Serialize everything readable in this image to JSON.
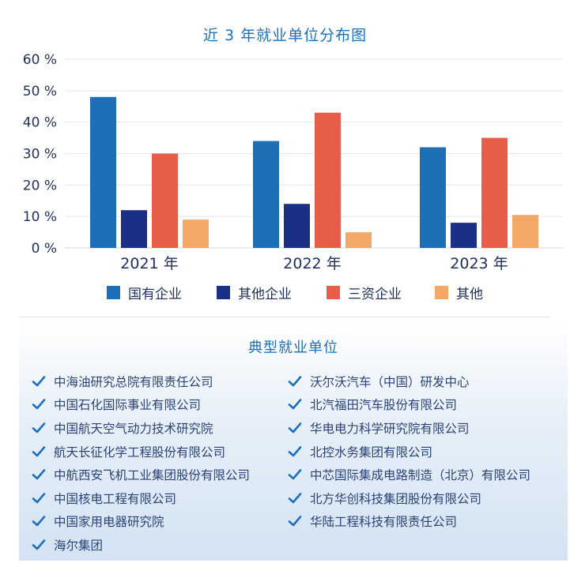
{
  "chart_data": {
    "type": "bar",
    "title": "近 3 年就业单位分布图",
    "categories": [
      "2021 年",
      "2022 年",
      "2023 年"
    ],
    "yticks": [
      "0 %",
      "10 %",
      "20 %",
      "30 %",
      "40 %",
      "50 %",
      "60 %"
    ],
    "ylim": [
      0,
      60
    ],
    "grid": true,
    "legend_position": "bottom",
    "series": [
      {
        "name": "国有企业",
        "color": "#1f6fb6",
        "values": [
          48,
          34,
          32
        ]
      },
      {
        "name": "其他企业",
        "color": "#1a2f85",
        "values": [
          12,
          14,
          8
        ]
      },
      {
        "name": "三资企业",
        "color": "#e85d4a",
        "values": [
          30,
          43,
          35
        ]
      },
      {
        "name": "其他",
        "color": "#f4a868",
        "values": [
          9,
          5,
          10.5
        ]
      }
    ]
  },
  "units": {
    "title": "典型就业单位",
    "left": [
      "中海油研究总院有限责任公司",
      "中国石化国际事业有限公司",
      "中国航天空气动力技术研究院",
      "航天长征化学工程股份有限公司",
      "中航西安飞机工业集团股份有限公司",
      "中国核电工程有限公司",
      "中国家用电器研究院",
      "海尔集团"
    ],
    "right": [
      "沃尔沃汽车（中国）研发中心",
      "北汽福田汽车股份有限公司",
      "华电电力科学研究院有限公司",
      "北控水务集团有限公司",
      "中芯国际集成电路制造（北京）有限公司",
      "北方华创科技集团股份有限公司",
      "华陆工程科技有限责任公司"
    ],
    "check_icon": "check-icon",
    "check_color": "#1d6fb8"
  }
}
